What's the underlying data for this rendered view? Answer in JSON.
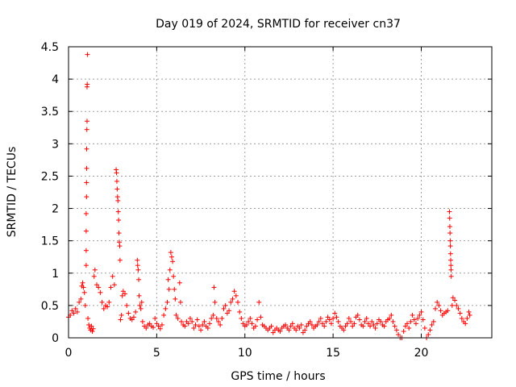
{
  "chart_data": {
    "type": "scatter",
    "title": "Day 019 of 2024, SRMTID for receiver cn37",
    "xlabel": "GPS time / hours",
    "ylabel": "SRMTID / TECUs",
    "xlim": [
      0,
      24
    ],
    "ylim": [
      0,
      4.5
    ],
    "xticks": [
      0,
      5,
      10,
      15,
      20
    ],
    "yticks": [
      0,
      0.5,
      1,
      1.5,
      2,
      2.5,
      3,
      3.5,
      4,
      4.5
    ],
    "ytick_labels": [
      "0",
      "0.5",
      "1",
      "1.5",
      "2",
      "2.5",
      "3",
      "3.5",
      "4",
      "4.5"
    ],
    "grid": true,
    "marker": "+",
    "color": "#ff0000",
    "series": [
      {
        "name": "SRMTID",
        "points": [
          [
            0.0,
            0.32
          ],
          [
            0.1,
            0.35
          ],
          [
            0.2,
            0.42
          ],
          [
            0.3,
            0.38
          ],
          [
            0.4,
            0.45
          ],
          [
            0.5,
            0.4
          ],
          [
            0.6,
            0.55
          ],
          [
            0.7,
            0.6
          ],
          [
            0.75,
            0.8
          ],
          [
            0.8,
            0.85
          ],
          [
            0.85,
            0.78
          ],
          [
            0.9,
            0.7
          ],
          [
            0.95,
            0.5
          ],
          [
            1.0,
            1.12
          ],
          [
            1.0,
            1.35
          ],
          [
            1.0,
            1.65
          ],
          [
            1.0,
            1.92
          ],
          [
            1.02,
            2.18
          ],
          [
            1.02,
            2.4
          ],
          [
            1.03,
            2.62
          ],
          [
            1.03,
            2.92
          ],
          [
            1.04,
            3.22
          ],
          [
            1.05,
            3.35
          ],
          [
            1.05,
            3.88
          ],
          [
            1.06,
            3.92
          ],
          [
            1.07,
            4.38
          ],
          [
            1.1,
            0.3
          ],
          [
            1.15,
            0.2
          ],
          [
            1.2,
            0.15
          ],
          [
            1.25,
            0.12
          ],
          [
            1.3,
            0.18
          ],
          [
            1.35,
            0.1
          ],
          [
            1.4,
            0.14
          ],
          [
            1.45,
            0.95
          ],
          [
            1.5,
            1.05
          ],
          [
            1.6,
            0.82
          ],
          [
            1.7,
            0.78
          ],
          [
            1.8,
            0.7
          ],
          [
            1.9,
            0.55
          ],
          [
            2.0,
            0.45
          ],
          [
            2.1,
            0.5
          ],
          [
            2.2,
            0.48
          ],
          [
            2.3,
            0.55
          ],
          [
            2.4,
            0.78
          ],
          [
            2.5,
            0.95
          ],
          [
            2.6,
            0.82
          ],
          [
            2.7,
            2.6
          ],
          [
            2.72,
            2.55
          ],
          [
            2.74,
            2.42
          ],
          [
            2.76,
            2.3
          ],
          [
            2.78,
            2.18
          ],
          [
            2.8,
            2.12
          ],
          [
            2.82,
            1.95
          ],
          [
            2.84,
            1.82
          ],
          [
            2.86,
            1.62
          ],
          [
            2.88,
            1.48
          ],
          [
            2.9,
            1.42
          ],
          [
            2.92,
            1.2
          ],
          [
            2.95,
            0.28
          ],
          [
            3.0,
            0.35
          ],
          [
            3.05,
            0.65
          ],
          [
            3.1,
            0.72
          ],
          [
            3.2,
            0.68
          ],
          [
            3.3,
            0.5
          ],
          [
            3.4,
            0.38
          ],
          [
            3.5,
            0.3
          ],
          [
            3.6,
            0.28
          ],
          [
            3.7,
            0.32
          ],
          [
            3.8,
            0.4
          ],
          [
            3.9,
            1.2
          ],
          [
            3.92,
            1.12
          ],
          [
            3.95,
            1.05
          ],
          [
            3.98,
            0.9
          ],
          [
            4.0,
            0.65
          ],
          [
            4.05,
            0.5
          ],
          [
            4.1,
            0.45
          ],
          [
            4.15,
            0.55
          ],
          [
            4.2,
            0.25
          ],
          [
            4.3,
            0.18
          ],
          [
            4.4,
            0.15
          ],
          [
            4.5,
            0.2
          ],
          [
            4.6,
            0.22
          ],
          [
            4.7,
            0.18
          ],
          [
            4.8,
            0.16
          ],
          [
            4.9,
            0.3
          ],
          [
            5.0,
            0.22
          ],
          [
            5.1,
            0.18
          ],
          [
            5.2,
            0.14
          ],
          [
            5.3,
            0.2
          ],
          [
            5.4,
            0.35
          ],
          [
            5.5,
            0.45
          ],
          [
            5.6,
            0.55
          ],
          [
            5.65,
            0.9
          ],
          [
            5.7,
            0.75
          ],
          [
            5.75,
            1.05
          ],
          [
            5.8,
            1.32
          ],
          [
            5.85,
            1.25
          ],
          [
            5.9,
            1.18
          ],
          [
            5.95,
            0.95
          ],
          [
            6.0,
            0.75
          ],
          [
            6.05,
            0.6
          ],
          [
            6.1,
            0.35
          ],
          [
            6.2,
            0.3
          ],
          [
            6.3,
            0.85
          ],
          [
            6.35,
            0.55
          ],
          [
            6.4,
            0.25
          ],
          [
            6.5,
            0.2
          ],
          [
            6.6,
            0.18
          ],
          [
            6.7,
            0.25
          ],
          [
            6.8,
            0.22
          ],
          [
            6.9,
            0.3
          ],
          [
            7.0,
            0.25
          ],
          [
            7.1,
            0.15
          ],
          [
            7.2,
            0.2
          ],
          [
            7.3,
            0.28
          ],
          [
            7.4,
            0.18
          ],
          [
            7.5,
            0.12
          ],
          [
            7.6,
            0.2
          ],
          [
            7.7,
            0.25
          ],
          [
            7.8,
            0.18
          ],
          [
            7.9,
            0.15
          ],
          [
            8.0,
            0.22
          ],
          [
            8.1,
            0.3
          ],
          [
            8.2,
            0.35
          ],
          [
            8.25,
            0.78
          ],
          [
            8.3,
            0.55
          ],
          [
            8.4,
            0.3
          ],
          [
            8.5,
            0.25
          ],
          [
            8.6,
            0.2
          ],
          [
            8.7,
            0.3
          ],
          [
            8.8,
            0.45
          ],
          [
            8.9,
            0.5
          ],
          [
            9.0,
            0.38
          ],
          [
            9.1,
            0.42
          ],
          [
            9.2,
            0.55
          ],
          [
            9.3,
            0.6
          ],
          [
            9.4,
            0.72
          ],
          [
            9.5,
            0.65
          ],
          [
            9.6,
            0.55
          ],
          [
            9.7,
            0.4
          ],
          [
            9.8,
            0.3
          ],
          [
            9.9,
            0.22
          ],
          [
            10.0,
            0.18
          ],
          [
            10.1,
            0.2
          ],
          [
            10.2,
            0.25
          ],
          [
            10.3,
            0.3
          ],
          [
            10.4,
            0.22
          ],
          [
            10.5,
            0.15
          ],
          [
            10.6,
            0.18
          ],
          [
            10.7,
            0.28
          ],
          [
            10.8,
            0.55
          ],
          [
            10.9,
            0.32
          ],
          [
            11.0,
            0.2
          ],
          [
            11.1,
            0.18
          ],
          [
            11.2,
            0.15
          ],
          [
            11.3,
            0.12
          ],
          [
            11.4,
            0.15
          ],
          [
            11.5,
            0.18
          ],
          [
            11.6,
            0.08
          ],
          [
            11.7,
            0.12
          ],
          [
            11.8,
            0.15
          ],
          [
            11.9,
            0.12
          ],
          [
            12.0,
            0.1
          ],
          [
            12.1,
            0.15
          ],
          [
            12.2,
            0.18
          ],
          [
            12.3,
            0.2
          ],
          [
            12.4,
            0.15
          ],
          [
            12.5,
            0.12
          ],
          [
            12.6,
            0.18
          ],
          [
            12.7,
            0.22
          ],
          [
            12.8,
            0.15
          ],
          [
            12.9,
            0.12
          ],
          [
            13.0,
            0.18
          ],
          [
            13.1,
            0.15
          ],
          [
            13.2,
            0.2
          ],
          [
            13.3,
            0.08
          ],
          [
            13.4,
            0.12
          ],
          [
            13.5,
            0.18
          ],
          [
            13.6,
            0.22
          ],
          [
            13.7,
            0.25
          ],
          [
            13.8,
            0.2
          ],
          [
            13.9,
            0.15
          ],
          [
            14.0,
            0.18
          ],
          [
            14.1,
            0.2
          ],
          [
            14.2,
            0.25
          ],
          [
            14.3,
            0.3
          ],
          [
            14.4,
            0.22
          ],
          [
            14.5,
            0.18
          ],
          [
            14.6,
            0.25
          ],
          [
            14.7,
            0.32
          ],
          [
            14.8,
            0.28
          ],
          [
            14.9,
            0.22
          ],
          [
            15.0,
            0.3
          ],
          [
            15.1,
            0.38
          ],
          [
            15.2,
            0.32
          ],
          [
            15.3,
            0.25
          ],
          [
            15.4,
            0.18
          ],
          [
            15.5,
            0.15
          ],
          [
            15.6,
            0.12
          ],
          [
            15.7,
            0.18
          ],
          [
            15.8,
            0.22
          ],
          [
            15.9,
            0.3
          ],
          [
            16.0,
            0.25
          ],
          [
            16.1,
            0.18
          ],
          [
            16.2,
            0.22
          ],
          [
            16.3,
            0.32
          ],
          [
            16.4,
            0.35
          ],
          [
            16.5,
            0.28
          ],
          [
            16.6,
            0.2
          ],
          [
            16.7,
            0.18
          ],
          [
            16.8,
            0.25
          ],
          [
            16.9,
            0.3
          ],
          [
            17.0,
            0.22
          ],
          [
            17.1,
            0.18
          ],
          [
            17.2,
            0.25
          ],
          [
            17.3,
            0.2
          ],
          [
            17.4,
            0.15
          ],
          [
            17.5,
            0.22
          ],
          [
            17.6,
            0.28
          ],
          [
            17.7,
            0.25
          ],
          [
            17.8,
            0.2
          ],
          [
            17.9,
            0.18
          ],
          [
            18.0,
            0.25
          ],
          [
            18.1,
            0.28
          ],
          [
            18.2,
            0.3
          ],
          [
            18.3,
            0.35
          ],
          [
            18.4,
            0.25
          ],
          [
            18.5,
            0.18
          ],
          [
            18.6,
            0.12
          ],
          [
            18.7,
            0.05
          ],
          [
            18.8,
            0.0
          ],
          [
            18.9,
            0.0
          ],
          [
            19.0,
            0.1
          ],
          [
            19.1,
            0.18
          ],
          [
            19.2,
            0.22
          ],
          [
            19.3,
            0.15
          ],
          [
            19.4,
            0.25
          ],
          [
            19.5,
            0.35
          ],
          [
            19.6,
            0.28
          ],
          [
            19.7,
            0.22
          ],
          [
            19.8,
            0.3
          ],
          [
            19.9,
            0.35
          ],
          [
            20.0,
            0.4
          ],
          [
            20.1,
            0.28
          ],
          [
            20.2,
            0.15
          ],
          [
            20.3,
            0.0
          ],
          [
            20.4,
            0.05
          ],
          [
            20.5,
            0.12
          ],
          [
            20.6,
            0.2
          ],
          [
            20.7,
            0.25
          ],
          [
            20.8,
            0.45
          ],
          [
            20.9,
            0.55
          ],
          [
            21.0,
            0.5
          ],
          [
            21.1,
            0.42
          ],
          [
            21.2,
            0.35
          ],
          [
            21.3,
            0.38
          ],
          [
            21.4,
            0.4
          ],
          [
            21.5,
            0.42
          ],
          [
            21.6,
            1.95
          ],
          [
            21.61,
            1.85
          ],
          [
            21.62,
            1.72
          ],
          [
            21.63,
            1.62
          ],
          [
            21.64,
            1.5
          ],
          [
            21.65,
            1.42
          ],
          [
            21.66,
            1.3
          ],
          [
            21.67,
            1.2
          ],
          [
            21.68,
            1.12
          ],
          [
            21.69,
            1.05
          ],
          [
            21.7,
            0.95
          ],
          [
            21.75,
            0.5
          ],
          [
            21.8,
            0.62
          ],
          [
            21.9,
            0.58
          ],
          [
            22.0,
            0.5
          ],
          [
            22.1,
            0.45
          ],
          [
            22.2,
            0.38
          ],
          [
            22.3,
            0.3
          ],
          [
            22.4,
            0.25
          ],
          [
            22.5,
            0.22
          ],
          [
            22.6,
            0.3
          ],
          [
            22.7,
            0.4
          ],
          [
            22.75,
            0.35
          ]
        ]
      }
    ]
  }
}
